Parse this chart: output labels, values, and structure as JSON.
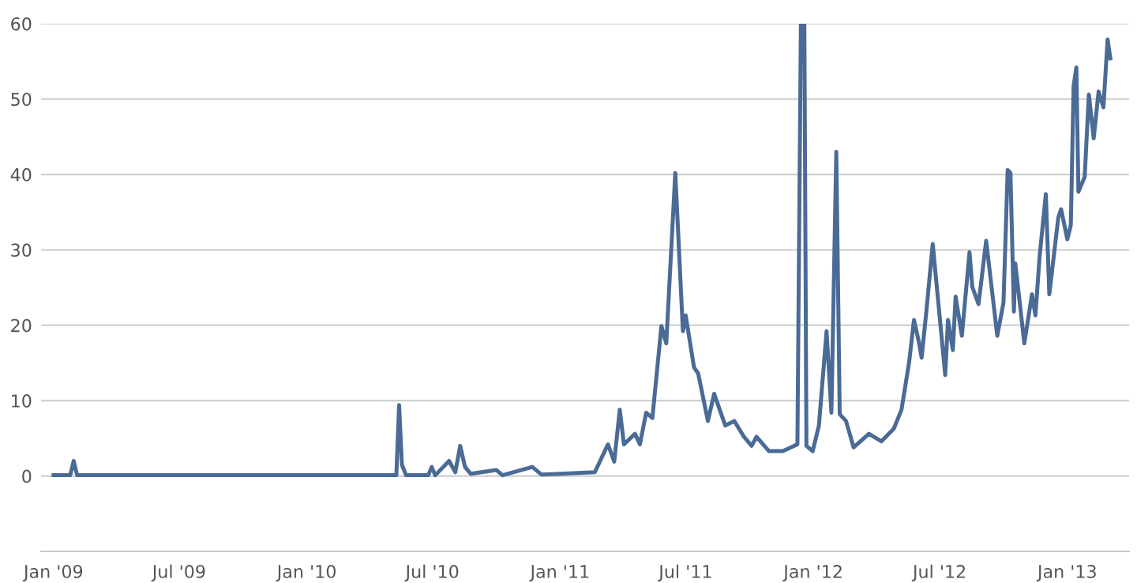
{
  "chart_data": {
    "type": "line",
    "color": "#4a6b95",
    "grid": "y",
    "legend": false,
    "marker": "none",
    "line_style": "solid",
    "x": [
      "2009-01-01",
      "2009-01-25",
      "2009-01-30",
      "2009-02-04",
      "2009-06-01",
      "2009-12-01",
      "2010-05-10",
      "2010-05-14",
      "2010-05-18",
      "2010-05-24",
      "2010-06-25",
      "2010-06-30",
      "2010-07-05",
      "2010-07-25",
      "2010-08-03",
      "2010-08-10",
      "2010-08-17",
      "2010-08-25",
      "2010-10-01",
      "2010-10-10",
      "2010-11-22",
      "2010-12-05",
      "2011-01-01",
      "2011-02-20",
      "2011-03-11",
      "2011-03-20",
      "2011-03-28",
      "2011-04-03",
      "2011-04-19",
      "2011-04-26",
      "2011-05-05",
      "2011-05-14",
      "2011-05-27",
      "2011-06-03",
      "2011-06-16",
      "2011-06-27",
      "2011-07-01",
      "2011-07-13",
      "2011-07-19",
      "2011-08-02",
      "2011-08-11",
      "2011-08-27",
      "2011-09-09",
      "2011-09-23",
      "2011-10-04",
      "2011-10-11",
      "2011-10-29",
      "2011-11-18",
      "2011-12-09",
      "2011-12-14",
      "2011-12-19",
      "2011-12-22",
      "2011-12-31",
      "2012-01-09",
      "2012-01-20",
      "2012-01-27",
      "2012-02-03",
      "2012-02-08",
      "2012-02-17",
      "2012-02-28",
      "2012-03-21",
      "2012-04-08",
      "2012-04-26",
      "2012-05-07",
      "2012-05-18",
      "2012-05-25",
      "2012-06-01",
      "2012-06-05",
      "2012-06-12",
      "2012-06-21",
      "2012-07-09",
      "2012-07-13",
      "2012-07-20",
      "2012-07-24",
      "2012-08-02",
      "2012-08-13",
      "2012-08-17",
      "2012-08-26",
      "2012-09-06",
      "2012-09-22",
      "2012-10-01",
      "2012-10-07",
      "2012-10-11",
      "2012-10-16",
      "2012-10-18",
      "2012-10-31",
      "2012-11-11",
      "2012-11-16",
      "2012-11-22",
      "2012-12-01",
      "2012-12-06",
      "2012-12-19",
      "2012-12-23",
      "2013-01-01",
      "2013-01-06",
      "2013-01-10",
      "2013-01-14",
      "2013-01-17",
      "2013-01-26",
      "2013-02-01",
      "2013-02-08",
      "2013-02-15",
      "2013-02-22",
      "2013-02-28",
      "2013-03-04"
    ],
    "values": [
      0.1,
      0.1,
      2,
      0.1,
      0.1,
      0.1,
      0.1,
      9.4,
      1.5,
      0.1,
      0.1,
      1.2,
      0.1,
      2,
      0.5,
      4,
      1.2,
      0.3,
      0.8,
      0.1,
      1.2,
      0.2,
      0.3,
      0.5,
      4.2,
      1.9,
      8.8,
      4.2,
      5.6,
      4.2,
      8.4,
      7.7,
      19.9,
      17.6,
      40.2,
      19.2,
      21.3,
      14.4,
      13.6,
      7.3,
      10.9,
      6.7,
      7.3,
      5.2,
      4,
      5.2,
      3.3,
      3.3,
      4.2,
      60,
      60,
      4,
      3.3,
      6.7,
      19.2,
      8.4,
      43,
      8.2,
      7.3,
      3.8,
      5.6,
      4.6,
      6.3,
      8.8,
      15.1,
      20.7,
      17.8,
      15.7,
      22,
      30.8,
      13.4,
      20.7,
      16.7,
      23.8,
      18.6,
      29.7,
      25.1,
      22.8,
      31.2,
      18.6,
      23,
      40.6,
      40.2,
      21.8,
      28.2,
      17.6,
      24.1,
      21.3,
      29.1,
      37.4,
      24.1,
      34.3,
      35.4,
      31.4,
      33.3,
      51.7,
      54.2,
      37.7,
      39.7,
      50.6,
      44.8,
      51,
      48.9,
      57.9,
      55.4
    ],
    "xlim": [
      "2008-12-14",
      "2013-03-31"
    ],
    "xticks": [
      {
        "value": "2009-01-01",
        "label": "Jan '09"
      },
      {
        "value": "2009-07-01",
        "label": "Jul '09"
      },
      {
        "value": "2010-01-01",
        "label": "Jan '10"
      },
      {
        "value": "2010-07-01",
        "label": "Jul '10"
      },
      {
        "value": "2011-01-01",
        "label": "Jan '11"
      },
      {
        "value": "2011-07-01",
        "label": "Jul '11"
      },
      {
        "value": "2012-01-01",
        "label": "Jan '12"
      },
      {
        "value": "2012-07-01",
        "label": "Jul '12"
      },
      {
        "value": "2013-01-01",
        "label": "Jan '13"
      }
    ],
    "ylim": [
      -10,
      60
    ],
    "yticks": [
      0,
      10,
      20,
      30,
      40,
      50,
      60
    ]
  }
}
